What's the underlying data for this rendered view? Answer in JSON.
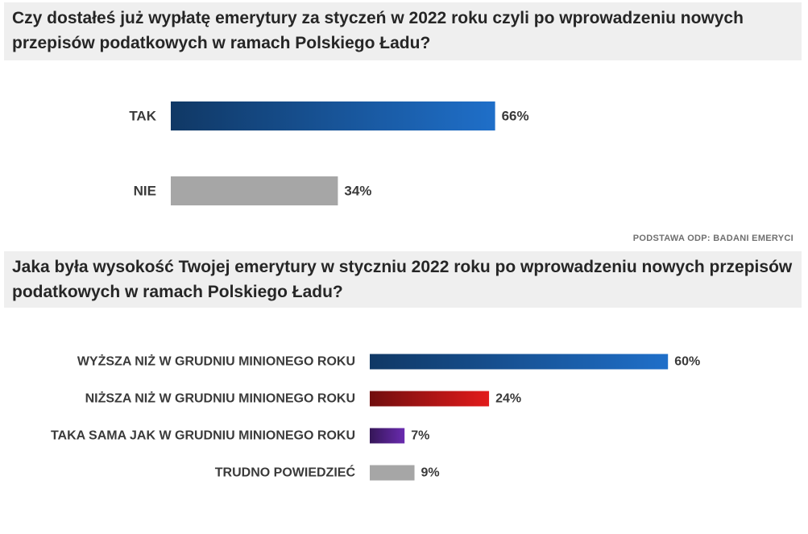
{
  "questions": [
    {
      "title": "Czy dostałeś już wypłatę emerytury za styczeń w 2022 roku czyli po wprowadzeniu nowych przepisów podatkowych w ramach Polskiego Ładu?"
    },
    {
      "title": "Jaka była wysokość Twojej emerytury w styczniu 2022 roku po wprowadzeniu nowych przepisów podatkowych w ramach Polskiego Ładu?"
    }
  ],
  "basis_note": "PODSTAWA ODP: BADANI EMERYCI",
  "chart_data": [
    {
      "type": "bar",
      "orientation": "horizontal",
      "title": "Czy dostałeś już wypłatę emerytury za styczeń w 2022 roku czyli po wprowadzeniu nowych przepisów podatkowych w ramach Polskiego Ładu?",
      "categories": [
        "TAK",
        "NIE"
      ],
      "values": [
        66,
        34
      ],
      "value_labels": [
        "66%",
        "34%"
      ],
      "unit": "%",
      "colors": [
        "#1f6fc9",
        "#a6a6a6"
      ],
      "xlim": [
        0,
        100
      ],
      "grid": false,
      "legend": "none"
    },
    {
      "type": "bar",
      "orientation": "horizontal",
      "title": "Jaka była wysokość Twojej emerytury w styczniu 2022 roku po wprowadzeniu nowych przepisów podatkowych w ramach Polskiego Ładu?",
      "categories": [
        "WYŻSZA NIŻ W GRUDNIU MINIONEGO ROKU",
        "NIŻSZA NIŻ W GRUDNIU MINIONEGO ROKU",
        "TAKA SAMA JAK W GRUDNIU MINIONEGO ROKU",
        "TRUDNO POWIEDZIEĆ"
      ],
      "values": [
        60,
        24,
        7,
        9
      ],
      "value_labels": [
        "60%",
        "24%",
        "7%",
        "9%"
      ],
      "unit": "%",
      "colors": [
        "#1f6fc9",
        "#e21b1b",
        "#6a2bb0",
        "#a6a6a6"
      ],
      "xlim": [
        0,
        100
      ],
      "grid": false,
      "legend": "none"
    }
  ]
}
